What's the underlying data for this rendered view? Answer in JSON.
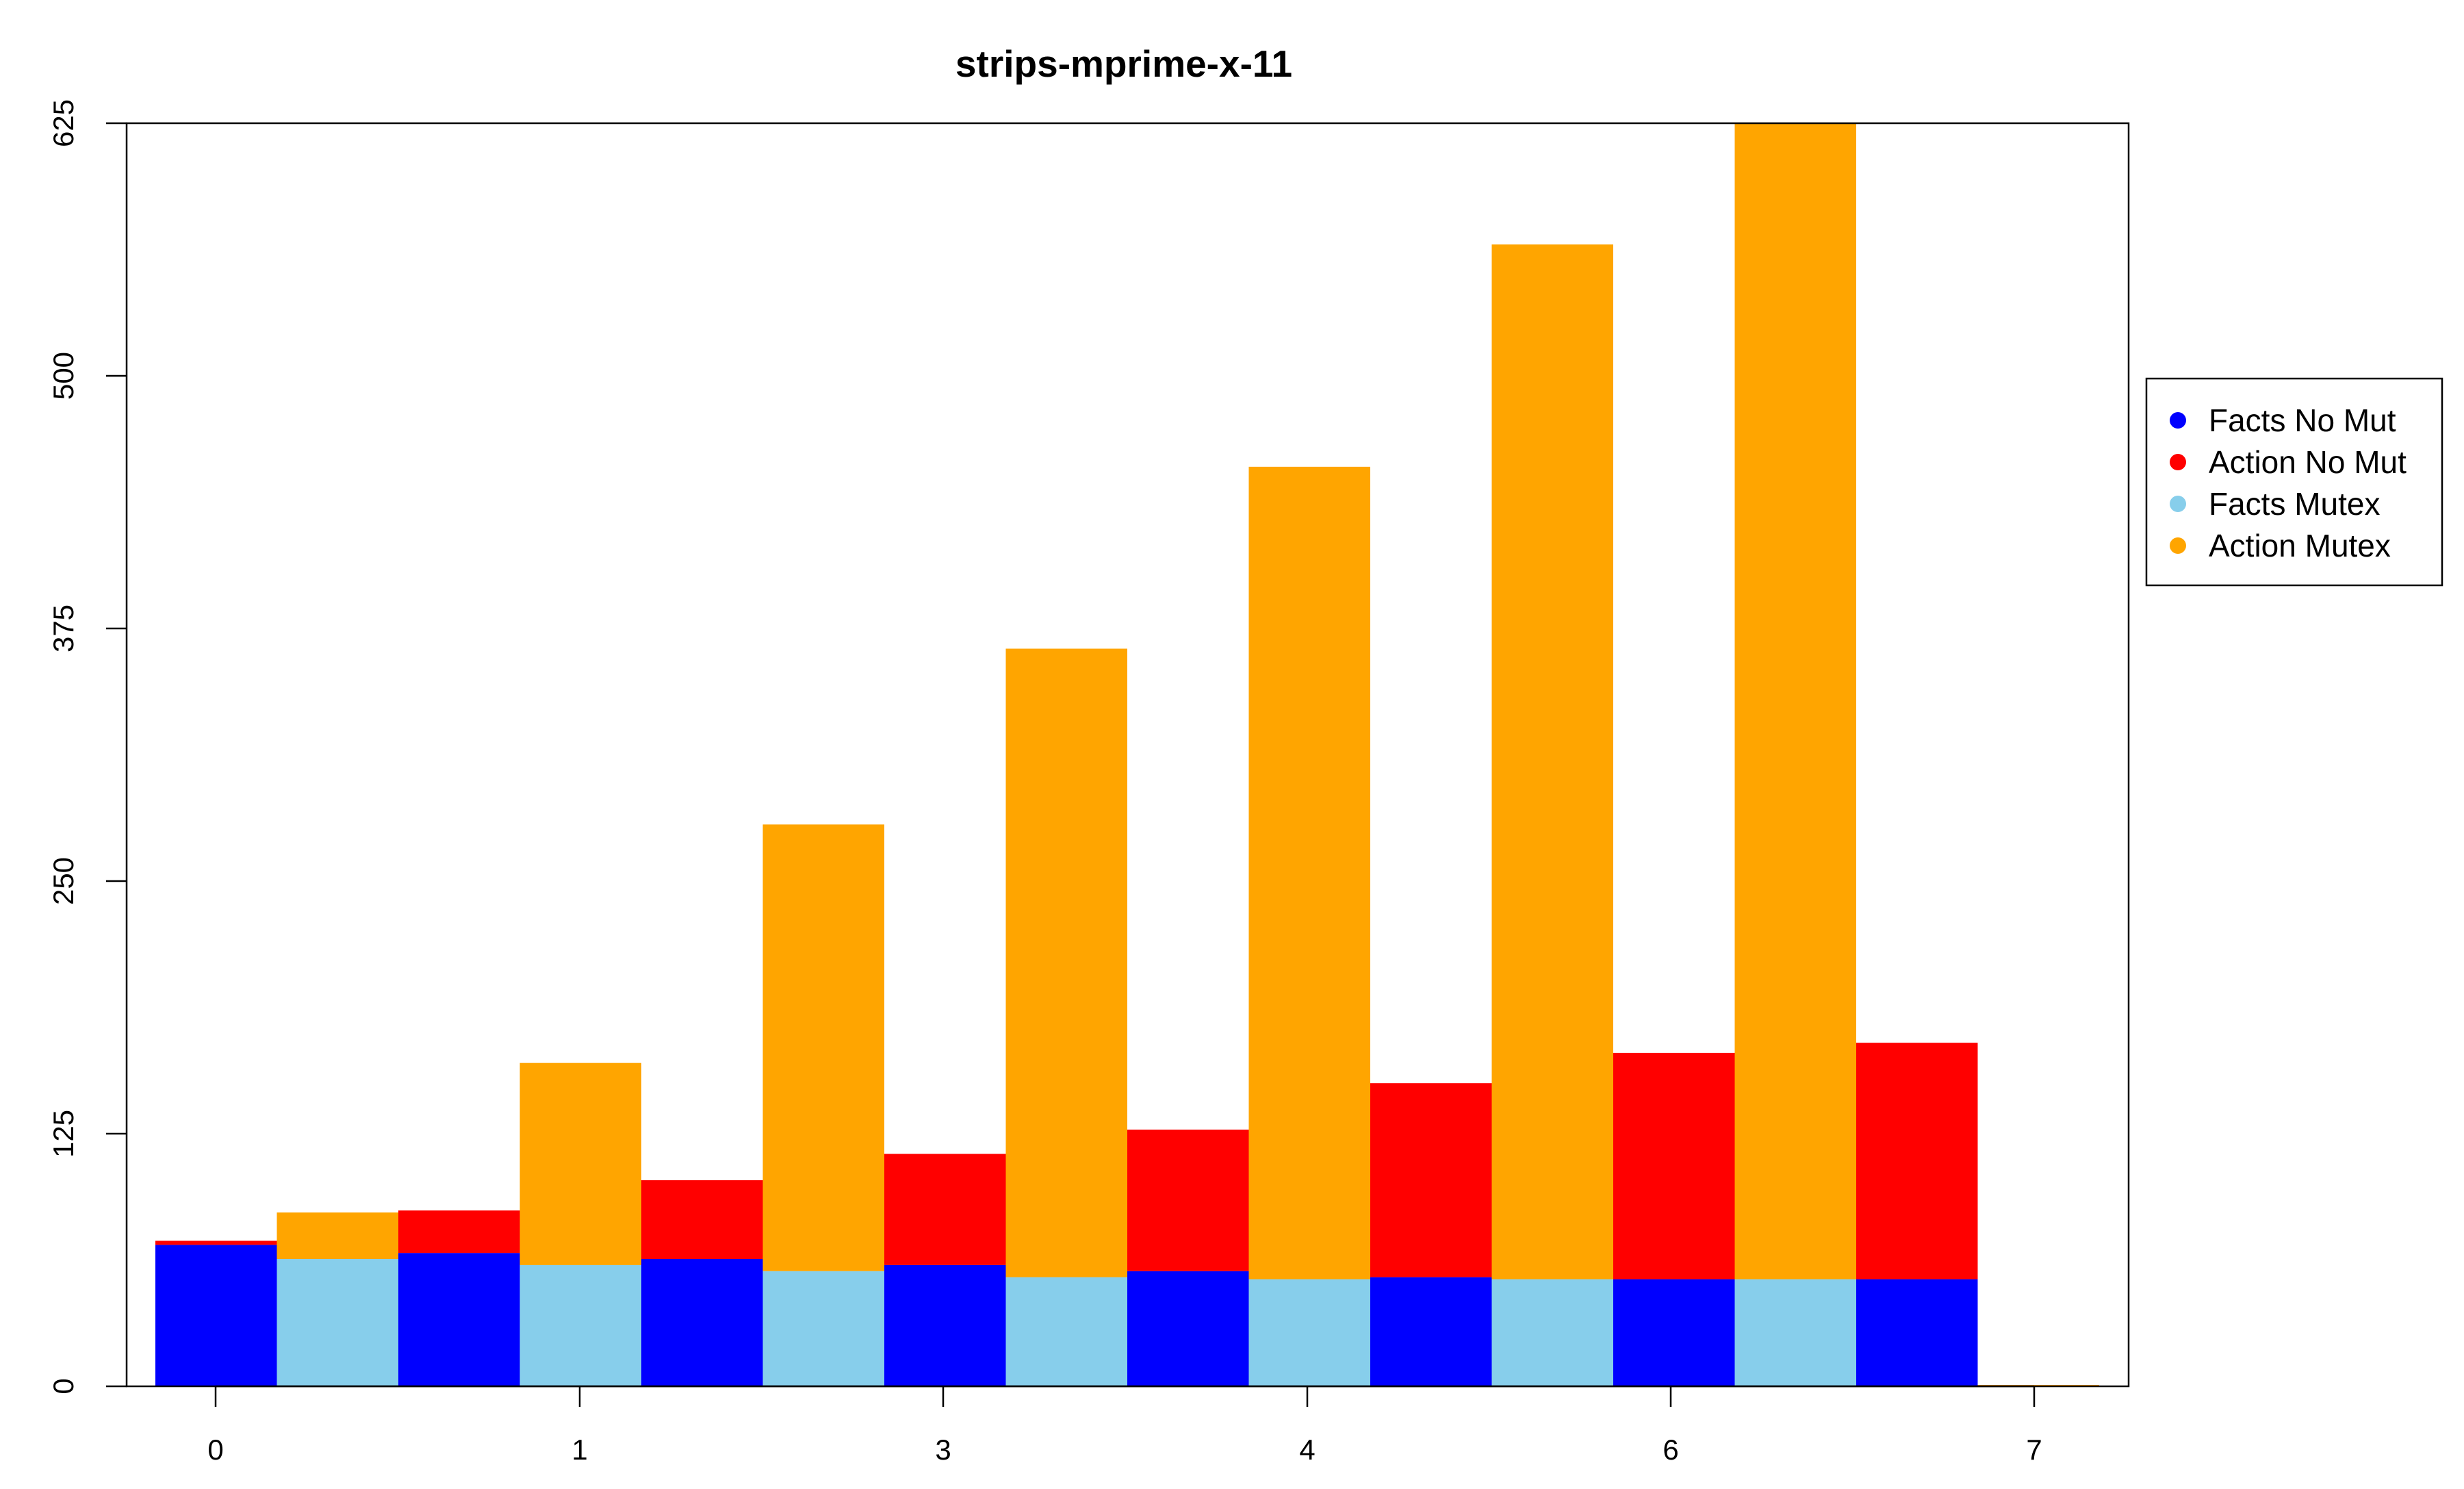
{
  "chart_data": {
    "type": "bar",
    "stacked": true,
    "title": "strips-mprime-x-11",
    "xlabel": "",
    "ylabel": "",
    "ylim": [
      0,
      625
    ],
    "grid": false,
    "legend_position": "right",
    "y_ticks": [
      "0",
      "125",
      "250",
      "375",
      "500",
      "625"
    ],
    "x_ticks": [
      "0",
      "1",
      "3",
      "4",
      "6",
      "7"
    ],
    "colors": {
      "facts_no_mut": "#0000ff",
      "action_no_mut": "#ff0000",
      "facts_mutex": "#87ceeb",
      "action_mutex": "#ffa500"
    },
    "legend": [
      {
        "key": "facts_no_mut",
        "label": "Facts No Mut"
      },
      {
        "key": "action_no_mut",
        "label": "Action No Mut"
      },
      {
        "key": "facts_mutex",
        "label": "Facts Mutex"
      },
      {
        "key": "action_mutex",
        "label": "Action Mutex"
      }
    ],
    "bars": [
      {
        "bottom_key": "facts_no_mut",
        "top_key": "action_no_mut",
        "bottom": 70,
        "total": 72
      },
      {
        "bottom_key": "facts_mutex",
        "top_key": "action_mutex",
        "bottom": 63,
        "total": 86
      },
      {
        "bottom_key": "facts_no_mut",
        "top_key": "action_no_mut",
        "bottom": 66,
        "total": 87
      },
      {
        "bottom_key": "facts_mutex",
        "top_key": "action_mutex",
        "bottom": 60,
        "total": 160
      },
      {
        "bottom_key": "facts_no_mut",
        "top_key": "action_no_mut",
        "bottom": 63,
        "total": 102
      },
      {
        "bottom_key": "facts_mutex",
        "top_key": "action_mutex",
        "bottom": 57,
        "total": 278
      },
      {
        "bottom_key": "facts_no_mut",
        "top_key": "action_no_mut",
        "bottom": 60,
        "total": 115
      },
      {
        "bottom_key": "facts_mutex",
        "top_key": "action_mutex",
        "bottom": 54,
        "total": 365
      },
      {
        "bottom_key": "facts_no_mut",
        "top_key": "action_no_mut",
        "bottom": 57,
        "total": 127
      },
      {
        "bottom_key": "facts_mutex",
        "top_key": "action_mutex",
        "bottom": 53,
        "total": 455
      },
      {
        "bottom_key": "facts_no_mut",
        "top_key": "action_no_mut",
        "bottom": 54,
        "total": 150
      },
      {
        "bottom_key": "facts_mutex",
        "top_key": "action_mutex",
        "bottom": 53,
        "total": 565
      },
      {
        "bottom_key": "facts_no_mut",
        "top_key": "action_no_mut",
        "bottom": 53,
        "total": 165
      },
      {
        "bottom_key": "facts_mutex",
        "top_key": "action_mutex",
        "bottom": 53,
        "total": 625
      },
      {
        "bottom_key": "facts_no_mut",
        "top_key": "action_no_mut",
        "bottom": 53,
        "total": 170
      },
      {
        "bottom_key": "facts_mutex",
        "top_key": "action_mutex",
        "bottom": 0,
        "total": 0.5
      }
    ]
  }
}
